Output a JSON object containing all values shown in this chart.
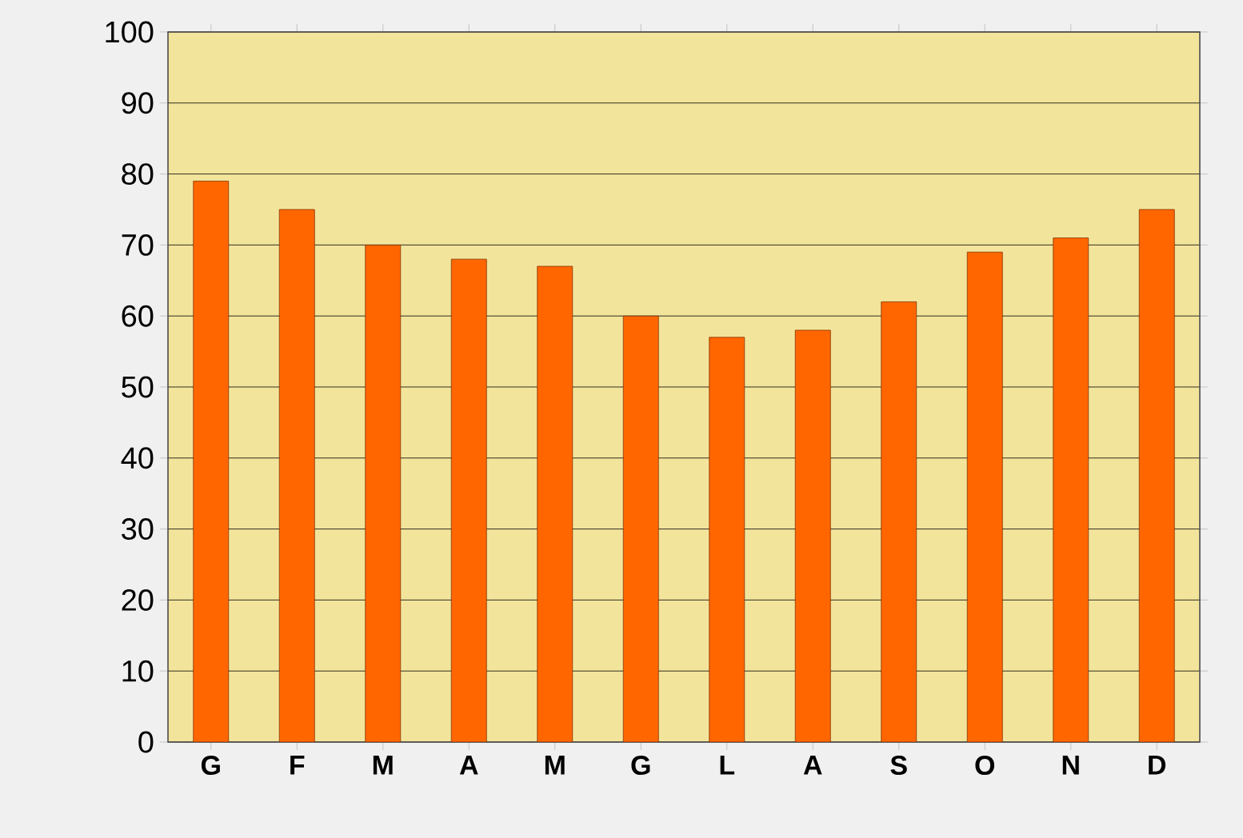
{
  "chart_data": {
    "type": "bar",
    "categories": [
      "G",
      "F",
      "M",
      "A",
      "M",
      "G",
      "L",
      "A",
      "S",
      "O",
      "N",
      "D"
    ],
    "values": [
      79,
      75,
      70,
      68,
      67,
      60,
      57,
      58,
      62,
      69,
      71,
      75
    ],
    "color": "#ff6600",
    "ylim": [
      0,
      100
    ],
    "yticks": [
      0,
      10,
      20,
      30,
      40,
      50,
      60,
      70,
      80,
      90,
      100
    ],
    "grid": "y"
  }
}
